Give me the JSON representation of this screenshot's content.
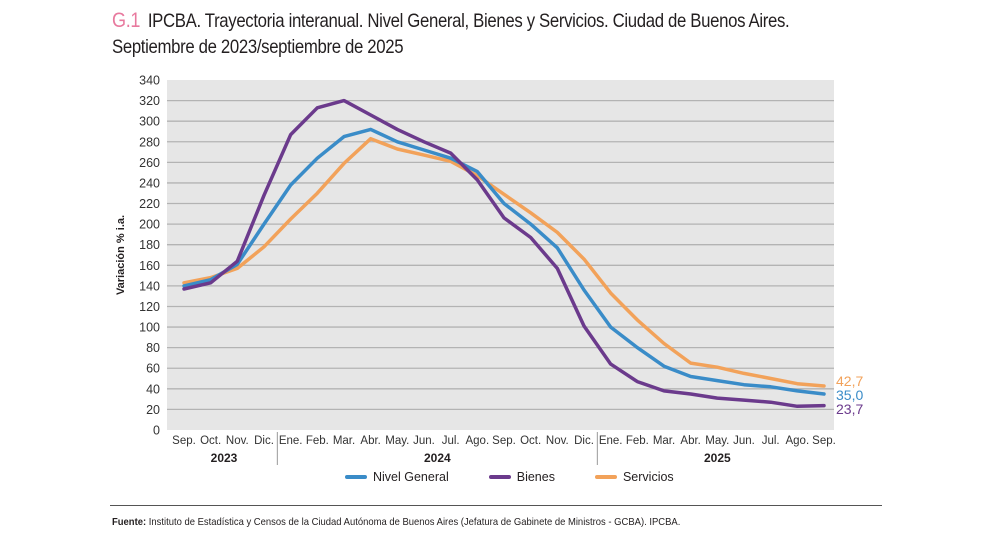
{
  "header": {
    "code": "G.1",
    "title_line1": "IPCBA. Trayectoria interanual. Nivel General, Bienes y Servicios. Ciudad de Buenos Aires.",
    "title_line2": "Septiembre de 2023/septiembre de 2025"
  },
  "footer": {
    "source_label": "Fuente:",
    "source_text": " Instituto de Estadística y Censos de la Ciudad Autónoma de Buenos Aires (Jefatura de Gabinete de Ministros - GCBA). IPCBA."
  },
  "chart_data": {
    "type": "line",
    "title": "IPCBA. Trayectoria interanual. Nivel General, Bienes y Servicios. Ciudad de Buenos Aires. Septiembre de 2023/septiembre de 2025",
    "xlabel": "",
    "ylabel": "Variación % i.a.",
    "ylim": [
      0,
      340
    ],
    "yticks": [
      0,
      20,
      40,
      60,
      80,
      100,
      120,
      140,
      160,
      180,
      200,
      220,
      240,
      260,
      280,
      300,
      320,
      340
    ],
    "grid": true,
    "legend_position": "bottom",
    "categories": [
      "Sep.",
      "Oct.",
      "Nov.",
      "Dic.",
      "Ene.",
      "Feb.",
      "Mar.",
      "Abr.",
      "May.",
      "Jun.",
      "Jul.",
      "Ago.",
      "Sep.",
      "Oct.",
      "Nov.",
      "Dic.",
      "Ene.",
      "Feb.",
      "Mar.",
      "Abr.",
      "May.",
      "Jun.",
      "Jul.",
      "Ago.",
      "Sep."
    ],
    "year_groups": [
      {
        "label": "2023",
        "start": 0,
        "end": 3
      },
      {
        "label": "2024",
        "start": 4,
        "end": 15
      },
      {
        "label": "2025",
        "start": 16,
        "end": 24
      }
    ],
    "series": [
      {
        "name": "Nivel General",
        "color": "#3a8cc8",
        "end_label": "35,0",
        "values": [
          140,
          146,
          161,
          200,
          238,
          264,
          285,
          292,
          280,
          272,
          264,
          251,
          220,
          200,
          177,
          136,
          100,
          80,
          62,
          52,
          48,
          44,
          42,
          38,
          35.0
        ]
      },
      {
        "name": "Bienes",
        "color": "#6b3a8c",
        "end_label": "23,7",
        "values": [
          137,
          143,
          164,
          228,
          287,
          313,
          320,
          306,
          292,
          280,
          269,
          243,
          206,
          187,
          157,
          101,
          64,
          47,
          38,
          35,
          31,
          29,
          27,
          23,
          23.7
        ]
      },
      {
        "name": "Servicios",
        "color": "#f2a25a",
        "end_label": "42,7",
        "values": [
          143,
          148,
          157,
          178,
          205,
          230,
          259,
          283,
          273,
          267,
          261,
          247,
          229,
          211,
          192,
          166,
          133,
          107,
          84,
          65,
          61,
          55,
          50,
          45,
          42.7
        ]
      }
    ]
  }
}
